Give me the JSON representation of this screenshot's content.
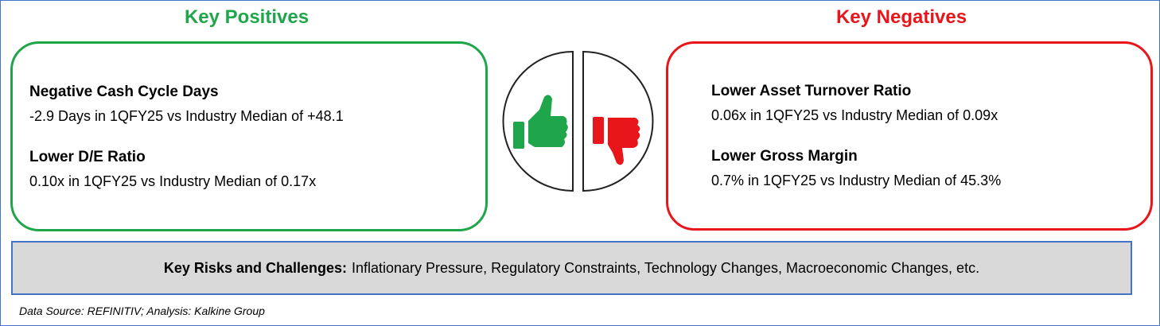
{
  "positives": {
    "title": "Key Positives",
    "items": [
      {
        "heading": "Negative Cash Cycle Days",
        "text": "-2.9 Days in 1QFY25 vs Industry Median of +48.1"
      },
      {
        "heading": "Lower D/E Ratio",
        "text": "0.10x in 1QFY25 vs Industry Median of 0.17x"
      }
    ]
  },
  "negatives": {
    "title": "Key Negatives",
    "items": [
      {
        "heading": "Lower Asset Turnover Ratio",
        "text": "0.06x in 1QFY25 vs Industry Median of 0.09x"
      },
      {
        "heading": "Lower Gross Margin",
        "text": "0.7% in 1QFY25 vs Industry Median of 45.3%"
      }
    ]
  },
  "risks": {
    "label": "Key Risks and Challenges:",
    "text": "Inflationary Pressure, Regulatory Constraints, Technology Changes, Macroeconomic Changes, etc."
  },
  "footer": "Data Source: REFINITIV; Analysis: Kalkine Group"
}
